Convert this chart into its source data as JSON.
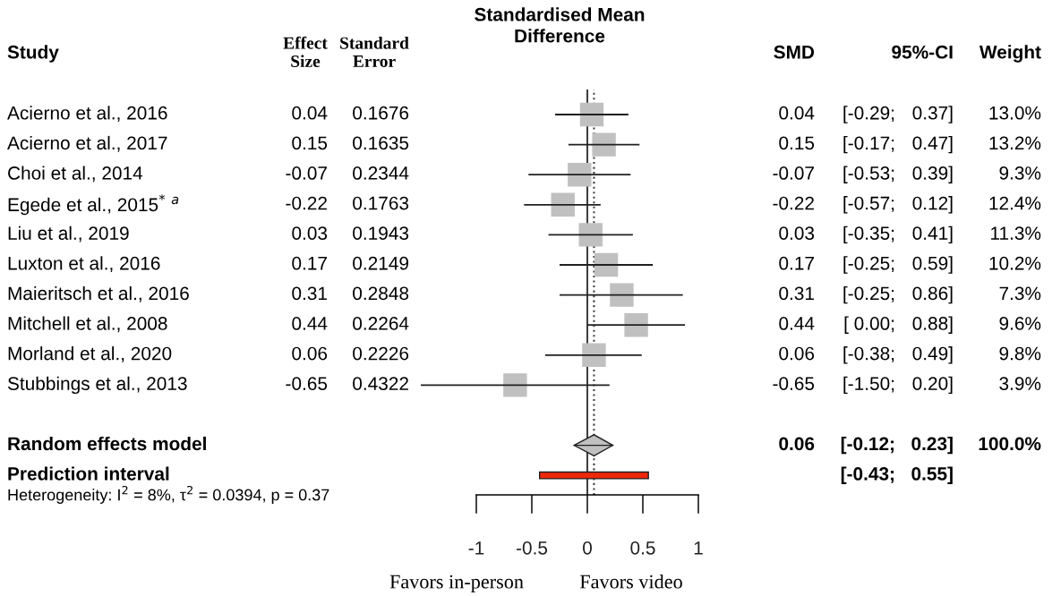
{
  "chart_data": [
    {
      "type": "other",
      "title": "Study",
      "categories": [
        "Acierno et al., 2016",
        "Acierno et al., 2017",
        "Choi et al., 2014",
        "Egede et al., 2015$^{*}$ $^{a}$",
        "Liu et al., 2019",
        "Luxton et al., 2016",
        "Maieritsch et al., 2016",
        "Mitchell et al., 2008",
        "Morland et al., 2020",
        "Stubbings et al., 2013",
        null,
        "Random effects model",
        "Prediction interval"
      ],
      "series": [
        {
          "name": "Effect\nSize",
          "values": [
            0.04,
            0.15,
            -0.07,
            -0.22,
            0.03,
            0.17,
            0.31,
            0.44,
            0.06,
            -0.65,
            null,
            null,
            null
          ]
        },
        {
          "name": "Standard\nError",
          "values": [
            0.1676,
            0.1635,
            0.2344,
            0.1763,
            0.1943,
            0.2149,
            0.2848,
            0.2264,
            0.2226,
            0.4322,
            null,
            null,
            null
          ]
        },
        {
          "name": "SMD",
          "values": [
            0.04,
            0.15,
            -0.07,
            -0.22,
            0.03,
            0.17,
            0.31,
            0.44,
            0.06,
            -0.65,
            null,
            0.06,
            null
          ]
        },
        {
          "name": "95%-CI",
          "values": [
            -0.29,
            -0.17,
            -0.53,
            -0.57,
            -0.35,
            -0.25,
            -0.25,
            0.0,
            -0.38,
            -1.5,
            null,
            -0.12,
            -0.43
          ],
          "value_labels": [
            "[-0.29;",
            "[-0.17;",
            "[-0.53;",
            "[-0.57;",
            "[-0.35;",
            "[-0.25;",
            "[-0.25;",
            "[ 0.00;",
            "[-0.38;",
            "[-1.50;",
            null,
            "[-0.12;",
            "[-0.43;"
          ]
        },
        {
          "values": [
            0.37,
            0.47,
            0.39,
            0.12,
            0.41,
            0.59,
            0.86,
            0.88,
            0.49,
            0.2,
            null,
            0.23,
            0.55
          ],
          "value_labels": [
            "0.37]",
            "0.47]",
            "0.39]",
            "0.12]",
            "0.41]",
            "0.59]",
            "0.86]",
            "0.88]",
            "0.49]",
            "0.20]",
            null,
            "0.23]",
            "0.55]"
          ]
        },
        {
          "name": "Weight",
          "values": [
            13.0,
            13.2,
            9.3,
            12.4,
            11.3,
            10.2,
            7.3,
            9.6,
            9.8,
            3.9,
            null,
            100.0,
            null
          ],
          "value_labels": [
            "13.0%",
            "13.2%",
            "9.3%",
            "12.4%",
            "11.3%",
            "10.2%",
            "7.3%",
            "9.6%",
            "9.8%",
            "3.9%",
            null,
            "100.0%",
            null
          ]
        }
      ],
      "data_labels": true,
      "annotations": [
        "Heterogeneity: I$^{2}$ = 8%, τ$^{2}$ = 0.0394, p = 0.37"
      ]
    },
    {
      "type": "scatter",
      "orientation": "horizontal",
      "title": "Standardised Mean\nDifference",
      "categories": [
        null,
        null,
        null,
        null,
        null,
        null,
        null,
        null,
        null,
        null,
        null,
        null,
        null
      ],
      "xlim": [
        -1.5,
        1
      ],
      "xticks": [
        -1,
        -0.5,
        0,
        0.5,
        1
      ],
      "tick_labels": "x",
      "grid": false,
      "ref_lines": [
        {
          "axis": "x",
          "value": 0,
          "line_style": "solid",
          "color": "#404040"
        },
        {
          "axis": "x",
          "value": 0.06,
          "line_style": "dotted",
          "color": "#404040"
        }
      ],
      "annotations": [
        "Favors in-person",
        "Favors video"
      ],
      "series": [
        {
          "type": "scatter",
          "marker": "square",
          "color": "#c0c0c0",
          "values": [
            0.04,
            0.15,
            -0.07,
            -0.22,
            0.03,
            0.17,
            0.31,
            0.44,
            0.06,
            -0.65,
            null,
            null,
            null
          ],
          "errors": [
            [
              -0.29,
              0.37
            ],
            [
              -0.17,
              0.47
            ],
            [
              -0.53,
              0.39
            ],
            [
              -0.57,
              0.12
            ],
            [
              -0.35,
              0.41
            ],
            [
              -0.25,
              0.59
            ],
            [
              -0.25,
              0.86
            ],
            [
              0.0,
              0.88
            ],
            [
              -0.38,
              0.49
            ],
            [
              -1.5,
              0.2
            ],
            null,
            null,
            null
          ]
        },
        {
          "type": "scatter",
          "marker": "diamond",
          "color": "#c0c0c0",
          "values": [
            null,
            null,
            null,
            null,
            null,
            null,
            null,
            null,
            null,
            null,
            null,
            0.06,
            null
          ],
          "errors": [
            null,
            null,
            null,
            null,
            null,
            null,
            null,
            null,
            null,
            null,
            null,
            [
              -0.12,
              0.23
            ],
            null
          ]
        },
        {
          "type": "bar",
          "color": "#f0280a",
          "base": [
            null,
            null,
            null,
            null,
            null,
            null,
            null,
            null,
            null,
            null,
            null,
            null,
            -0.43
          ],
          "values": [
            null,
            null,
            null,
            null,
            null,
            null,
            null,
            null,
            null,
            null,
            null,
            null,
            0.98
          ]
        }
      ]
    }
  ]
}
